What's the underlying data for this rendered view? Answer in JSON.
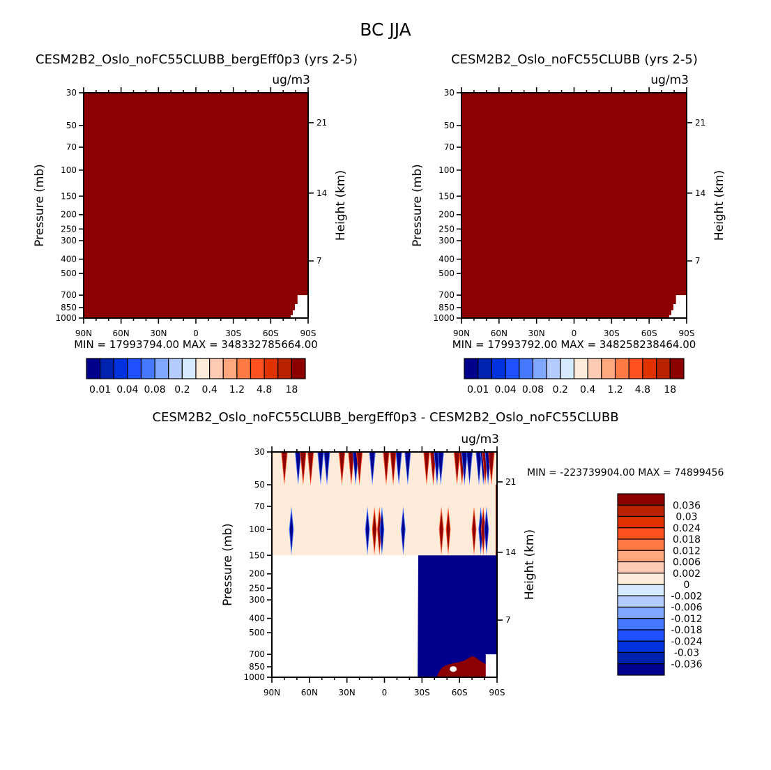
{
  "chart_data": {
    "type": "heatmap",
    "title": "BC JJA",
    "ylabel": "Pressure (mb)",
    "y2label": "Height (km)",
    "pressure_ticks": [
      30,
      50,
      70,
      100,
      150,
      200,
      250,
      300,
      400,
      500,
      700,
      850,
      1000
    ],
    "pressure_range": [
      30,
      1000
    ],
    "lat_range": [
      90,
      -90
    ],
    "lat_ticks": [
      {
        "lat": 90,
        "label": "90N"
      },
      {
        "lat": 60,
        "label": "60N"
      },
      {
        "lat": 30,
        "label": "30N"
      },
      {
        "lat": 0,
        "label": "0"
      },
      {
        "lat": -30,
        "label": "30S"
      },
      {
        "lat": -60,
        "label": "60S"
      },
      {
        "lat": -90,
        "label": "90S"
      }
    ],
    "height_ticks": [
      {
        "km": "21",
        "p": 47.8
      },
      {
        "km": "14",
        "p": 143
      },
      {
        "km": "7",
        "p": 411
      }
    ],
    "panels": [
      {
        "title": "CESM2B2_Oslo_noFC55CLUBB_bergEff0p3 (yrs 2-5)",
        "units": "ug/m3",
        "min_max": "MIN = 17993794.00   MAX = 348332785664.00",
        "fill_color": "#8B0000",
        "missing_region": [
          [
            -81.5,
            700
          ],
          [
            -90,
            700
          ],
          [
            -90,
            1000
          ],
          [
            -76,
            1000
          ],
          [
            -76,
            955
          ],
          [
            -77.7,
            955
          ],
          [
            -77.7,
            885
          ],
          [
            -79.4,
            885
          ],
          [
            -79.4,
            805
          ],
          [
            -81.5,
            805
          ]
        ],
        "colorbar": {
          "colors": [
            "#00008C",
            "#0022B0",
            "#0033DD",
            "#1E50FF",
            "#4478FF",
            "#80A8FF",
            "#B4CCFF",
            "#D6EBFF",
            "#FEEBDA",
            "#FFCCB3",
            "#FFA880",
            "#FF7A45",
            "#FF5020",
            "#E03200",
            "#B82200",
            "#8C0000"
          ],
          "labels": [
            "0.01",
            "0.04",
            "0.08",
            "0.2",
            "0.4",
            "1.2",
            "4.8",
            "18"
          ]
        }
      },
      {
        "title": "CESM2B2_Oslo_noFC55CLUBB (yrs 2-5)",
        "units": "ug/m3",
        "min_max": "MIN = 17993792.00   MAX = 348258238464.00",
        "fill_color": "#8B0000",
        "missing_region": [
          [
            -81.5,
            700
          ],
          [
            -90,
            700
          ],
          [
            -90,
            1000
          ],
          [
            -76,
            1000
          ],
          [
            -76,
            955
          ],
          [
            -77.7,
            955
          ],
          [
            -77.7,
            885
          ],
          [
            -79.4,
            885
          ],
          [
            -79.4,
            805
          ],
          [
            -81.5,
            805
          ]
        ],
        "colorbar": {
          "colors": [
            "#00008C",
            "#0022B0",
            "#0033DD",
            "#1E50FF",
            "#4478FF",
            "#80A8FF",
            "#B4CCFF",
            "#D6EBFF",
            "#FEEBDA",
            "#FFCCB3",
            "#FFA880",
            "#FF7A45",
            "#FF5020",
            "#E03200",
            "#B82200",
            "#8C0000"
          ],
          "labels": [
            "0.01",
            "0.04",
            "0.08",
            "0.2",
            "0.4",
            "1.2",
            "4.8",
            "18"
          ]
        }
      },
      {
        "title": "CESM2B2_Oslo_noFC55CLUBB_bergEff0p3 - CESM2B2_Oslo_noFC55CLUBB",
        "units": "ug/m3",
        "min_max": "MIN = -223739904.00   MAX = 74899456",
        "background_band": {
          "p_top": 30,
          "p_bottom": 150,
          "color": "#FEEBDA"
        },
        "negative_block": [
          [
            -27,
            150
          ],
          [
            -90,
            150
          ],
          [
            -90,
            1000
          ],
          [
            -26.5,
            1000
          ]
        ],
        "negative_color": "#00008C",
        "positive_blob": [
          [
            -42,
            1000
          ],
          [
            -43,
            940
          ],
          [
            -45,
            880
          ],
          [
            -48,
            840
          ],
          [
            -52,
            815
          ],
          [
            -56,
            800
          ],
          [
            -60,
            790
          ],
          [
            -64,
            770
          ],
          [
            -67,
            745
          ],
          [
            -70,
            720
          ],
          [
            -73,
            735
          ],
          [
            -76,
            770
          ],
          [
            -79,
            800
          ],
          [
            -82,
            815
          ],
          [
            -85,
            860
          ],
          [
            -87,
            960
          ],
          [
            -88,
            1000
          ]
        ],
        "positive_color": "#8B0000",
        "missing_box": [
          [
            -81,
            700
          ],
          [
            -90,
            700
          ],
          [
            -90,
            1000
          ],
          [
            -81,
            1000
          ]
        ],
        "upper_spikes": [
          {
            "lat": 80,
            "sign": 1
          },
          {
            "lat": 69,
            "sign": -1
          },
          {
            "lat": 65,
            "sign": 1
          },
          {
            "lat": 59,
            "sign": 1
          },
          {
            "lat": 51,
            "sign": -1
          },
          {
            "lat": 46,
            "sign": -1
          },
          {
            "lat": 34,
            "sign": 1
          },
          {
            "lat": 26.5,
            "sign": 1
          },
          {
            "lat": 23,
            "sign": -1
          },
          {
            "lat": 20,
            "sign": 1
          },
          {
            "lat": 9.7,
            "sign": -1
          },
          {
            "lat": -1.4,
            "sign": 1
          },
          {
            "lat": -7,
            "sign": 1
          },
          {
            "lat": -11.5,
            "sign": -1
          },
          {
            "lat": -18.6,
            "sign": -1
          },
          {
            "lat": -33.7,
            "sign": 1
          },
          {
            "lat": -39,
            "sign": 1
          },
          {
            "lat": -42,
            "sign": -1
          },
          {
            "lat": -45,
            "sign": -1
          },
          {
            "lat": -58,
            "sign": 1
          },
          {
            "lat": -62,
            "sign": 1
          },
          {
            "lat": -64,
            "sign": -1
          },
          {
            "lat": -68,
            "sign": -1
          },
          {
            "lat": -75.5,
            "sign": -1
          },
          {
            "lat": -79,
            "sign": -1
          },
          {
            "lat": -80.5,
            "sign": 1
          },
          {
            "lat": -82.8,
            "sign": -1
          },
          {
            "lat": -85.5,
            "sign": 1
          }
        ],
        "mid_spikes": [
          {
            "lat": 74.4,
            "sign": -1
          },
          {
            "lat": 13.6,
            "sign": -1
          },
          {
            "lat": 8,
            "sign": 1
          },
          {
            "lat": 4,
            "sign": 1
          },
          {
            "lat": 2,
            "sign": -1
          },
          {
            "lat": -15,
            "sign": -1
          },
          {
            "lat": -45.5,
            "sign": 1
          },
          {
            "lat": -51,
            "sign": 1
          },
          {
            "lat": -71.6,
            "sign": 1
          },
          {
            "lat": -77,
            "sign": -1
          },
          {
            "lat": -79,
            "sign": 1
          },
          {
            "lat": -81.6,
            "sign": -1
          }
        ],
        "colorbar": {
          "colors": [
            "#8C0000",
            "#B82200",
            "#E03200",
            "#FF5020",
            "#FF7A45",
            "#FFA880",
            "#FFCCB3",
            "#FEEBDA",
            "#D6EBFF",
            "#B4CCFF",
            "#80A8FF",
            "#4478FF",
            "#1E50FF",
            "#0033DD",
            "#0022B0",
            "#00008C"
          ],
          "labels": [
            "0.036",
            "0.03",
            "0.024",
            "0.018",
            "0.012",
            "0.006",
            "0.002",
            "0",
            "-0.002",
            "-0.006",
            "-0.012",
            "-0.018",
            "-0.024",
            "-0.03",
            "-0.036"
          ]
        }
      }
    ]
  }
}
